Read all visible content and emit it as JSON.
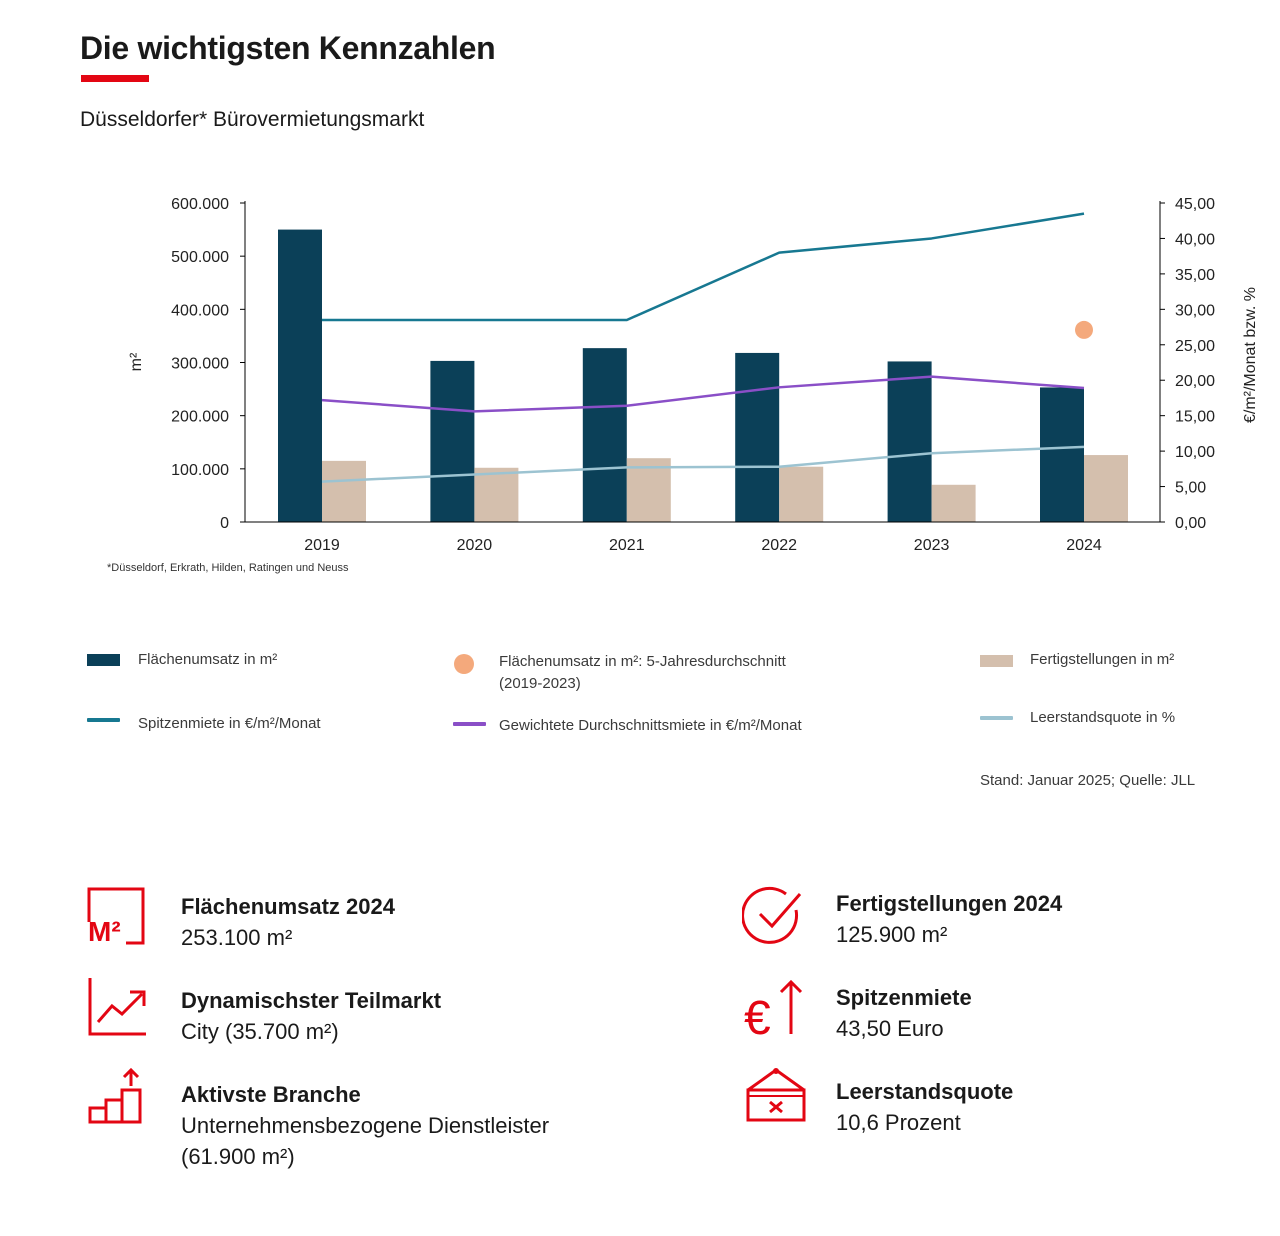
{
  "header": {
    "title": "Die wichtigsten Kennzahlen",
    "subtitle": "Düsseldorfer* Bürovermietungsmarkt",
    "accent_color": "#e30613"
  },
  "chart_data": {
    "type": "bar",
    "categories": [
      "2019",
      "2020",
      "2021",
      "2022",
      "2023",
      "2024"
    ],
    "ylabel": "m²",
    "y2label": "€/m²/Monat bzw. %",
    "ylim": [
      0,
      600000
    ],
    "y2lim": [
      0,
      45
    ],
    "yticks": [
      "0",
      "100.000",
      "200.000",
      "300.000",
      "400.000",
      "500.000",
      "600.000"
    ],
    "y2ticks": [
      "0,00",
      "5,00",
      "10,00",
      "15,00",
      "20,00",
      "25,00",
      "30,00",
      "35,00",
      "40,00",
      "45,00"
    ],
    "grid": false,
    "footnote": "*Düsseldorf, Erkrath, Hilden, Ratingen und Neuss",
    "series": [
      {
        "name": "Flächenumsatz in m²",
        "kind": "bar",
        "axis": "left",
        "color": "#0b4058",
        "values": [
          550000,
          303000,
          327000,
          318000,
          302000,
          253100
        ]
      },
      {
        "name": "Fertigstellungen in m²",
        "kind": "bar",
        "axis": "left",
        "color": "#d4bfad",
        "values": [
          115000,
          102000,
          120000,
          104000,
          70000,
          125900
        ]
      },
      {
        "name": "Spitzenmiete in €/m²/Monat",
        "kind": "line",
        "axis": "right",
        "color": "#177891",
        "values": [
          28.5,
          28.5,
          28.5,
          38.0,
          40.0,
          43.5
        ]
      },
      {
        "name": "Gewichtete Durchschnittsmiete in €/m²/Monat",
        "kind": "line",
        "axis": "right",
        "color": "#8a4fc7",
        "values": [
          17.2,
          15.6,
          16.4,
          19.0,
          20.5,
          18.9
        ]
      },
      {
        "name": "Leerstandsquote in %",
        "kind": "line",
        "axis": "right",
        "color": "#9cc3d1",
        "values": [
          5.7,
          6.7,
          7.7,
          7.8,
          9.7,
          10.6
        ]
      },
      {
        "name": "Flächenumsatz in m²: 5-Jahresdurchschnitt (2019-2023)",
        "kind": "dot",
        "axis": "right",
        "color": "#f4a97c",
        "category": "2024",
        "value": 27.1
      }
    ]
  },
  "legend": [
    {
      "id": "umsatz",
      "label": "Flächenumsatz in m²",
      "marker": "rect",
      "color": "#0b4058"
    },
    {
      "id": "avg",
      "label": "Flächenumsatz in m²: 5-Jahresdurchschnitt",
      "label2": "(2019-2023)",
      "marker": "dot",
      "color": "#f4a97c"
    },
    {
      "id": "fertig",
      "label": "Fertigstellungen in m²",
      "marker": "rect",
      "color": "#d4bfad"
    },
    {
      "id": "spitze",
      "label": "Spitzenmiete in €/m²/Monat",
      "marker": "line",
      "color": "#177891"
    },
    {
      "id": "durchschnitt",
      "label": "Gewichtete Durchschnittsmiete in €/m²/Monat",
      "marker": "line",
      "color": "#8a4fc7"
    },
    {
      "id": "leerstand",
      "label": "Leerstandsquote in %",
      "marker": "line",
      "color": "#9cc3d1"
    }
  ],
  "source": "Stand: Januar 2025; Quelle: JLL",
  "kpis": [
    {
      "id": "umsatz",
      "icon": "m2-square-icon",
      "label": "Flächenumsatz 2024",
      "value": "253.100 m²"
    },
    {
      "id": "fertig",
      "icon": "check-circle-icon",
      "label": "Fertigstellungen 2024",
      "value": "125.900 m²"
    },
    {
      "id": "teilmarkt",
      "icon": "trend-chart-icon",
      "label": "Dynamischster Teilmarkt",
      "value": "City (35.700 m²)"
    },
    {
      "id": "spitze",
      "icon": "euro-up-icon",
      "label": "Spitzenmiete",
      "value": "43,50 Euro"
    },
    {
      "id": "branche",
      "icon": "bar-steps-icon",
      "label": "Aktivste Branche",
      "value": "Unternehmensbezogene Dienstleister",
      "value2": "(61.900 m²)"
    },
    {
      "id": "leerstand",
      "icon": "vacant-sign-icon",
      "label": "Leerstandsquote",
      "value": "10,6 Prozent"
    }
  ]
}
